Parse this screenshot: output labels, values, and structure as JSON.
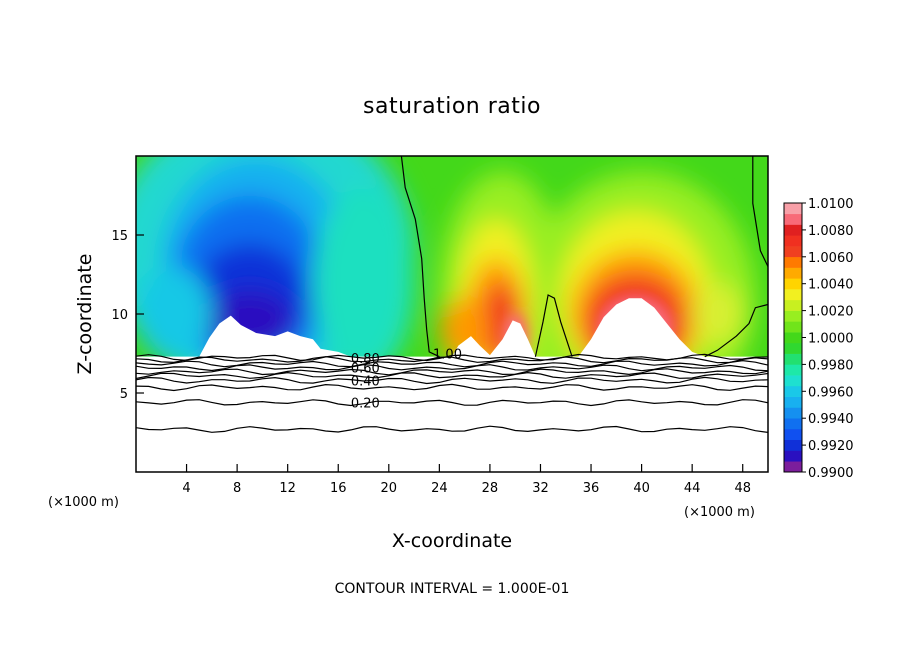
{
  "chart_data": {
    "type": "heatmap",
    "title": "saturation ratio",
    "xlabel": "X-coordinate",
    "ylabel": "Z-coordinate",
    "x_unit_left": "(×1000 m)",
    "x_unit_right": "(×1000 m)",
    "xlim": [
      0,
      50
    ],
    "ylim": [
      0,
      20
    ],
    "x_ticks": [
      4,
      8,
      12,
      16,
      20,
      24,
      28,
      32,
      36,
      40,
      44,
      48
    ],
    "y_ticks": [
      5,
      10,
      15
    ],
    "colorbar": {
      "min": 0.99,
      "max": 1.01,
      "tick_labels": [
        "1.0100",
        "1.0080",
        "1.0060",
        "1.0040",
        "1.0020",
        "1.0000",
        "0.9980",
        "0.9960",
        "0.9940",
        "0.9920",
        "0.9900"
      ]
    },
    "contour_labels": [
      {
        "text": "1.00",
        "x": 23.5,
        "z": 7.5
      },
      {
        "text": "0.80",
        "x": 17.0,
        "z": 7.2
      },
      {
        "text": "0.60",
        "x": 17.0,
        "z": 6.6
      },
      {
        "text": "0.40",
        "x": 17.0,
        "z": 5.8
      },
      {
        "text": "0.20",
        "x": 17.0,
        "z": 4.4
      }
    ],
    "contour_interval_text": "CONTOUR INTERVAL = 1.000E-01",
    "features": {
      "terrain_top_z": 7.3,
      "dry_region_x": [
        4,
        16
      ],
      "moist_plumes_x": [
        27,
        30,
        39,
        46
      ]
    }
  }
}
